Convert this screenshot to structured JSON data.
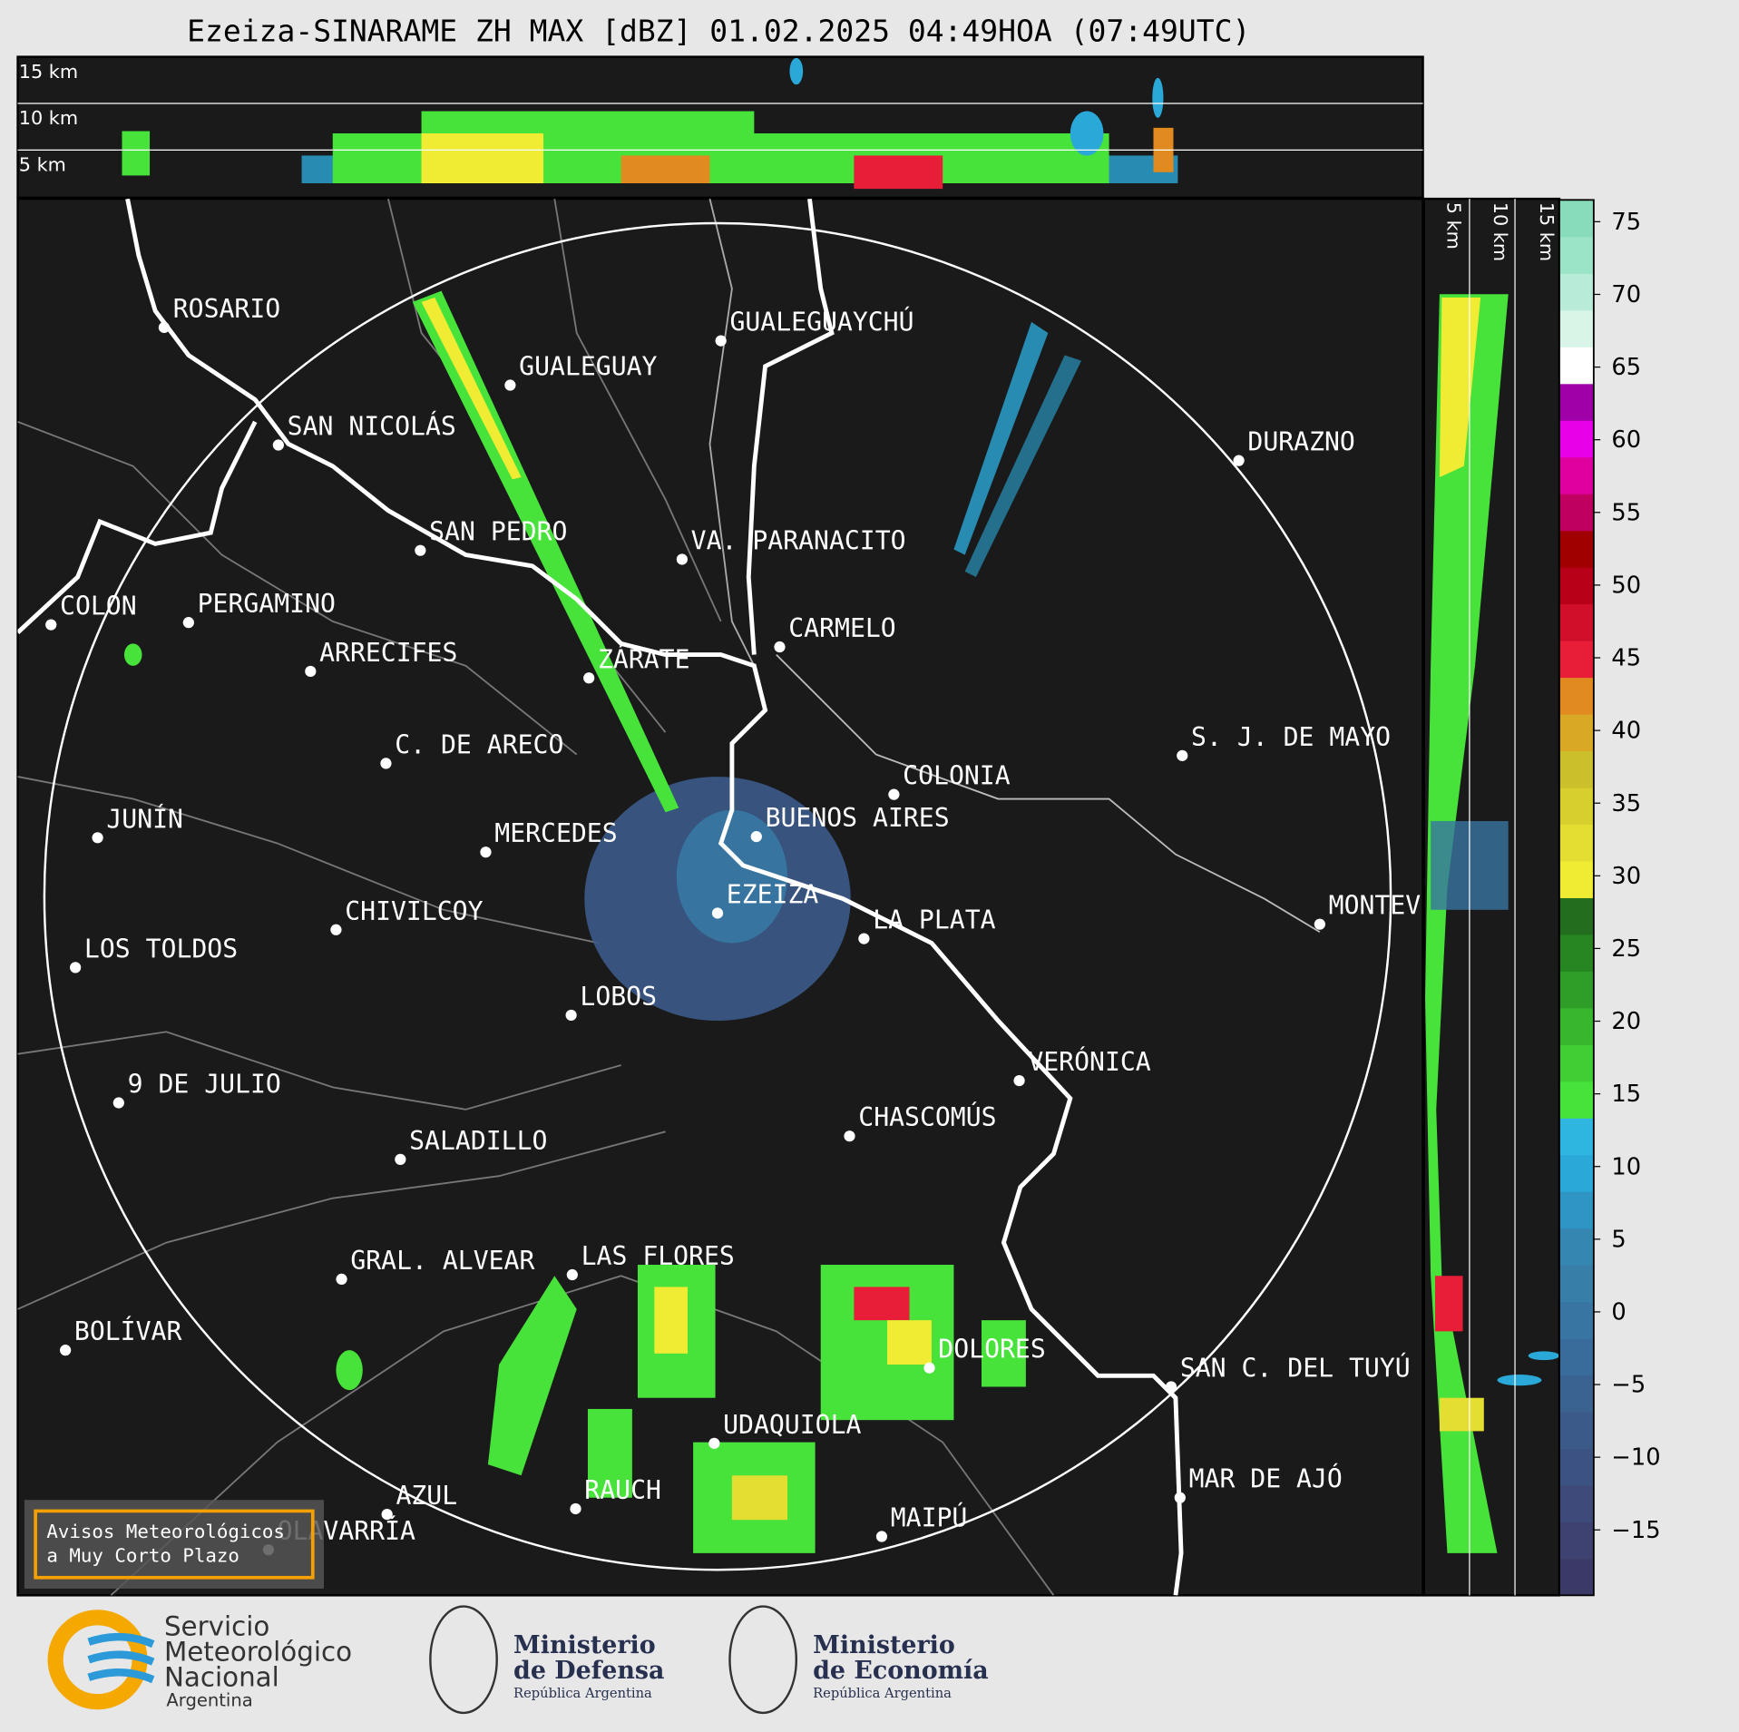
{
  "title": "Ezeiza-SINARAME ZH MAX [dBZ] 01.02.2025 04:49HOA (07:49UTC)",
  "profile_top": {
    "height_labels": [
      "15 km",
      "10 km",
      "5 km"
    ]
  },
  "profile_right": {
    "height_labels": [
      "5 km",
      "10 km",
      "15 km"
    ]
  },
  "cities": [
    "ROSARIO",
    "GUALEGUAYCHÚ",
    "GUALEGUAY",
    "SAN NICOLÁS",
    "DURAZNO",
    "SAN PEDRO",
    "VA. PARANACITO",
    "COLON",
    "PERGAMINO",
    "CARMELO",
    "ARRECIFES",
    "ZÁRATE",
    "S. J. DE MAYO",
    "C. DE ARECO",
    "COLONIA",
    "BUENOS AIRES",
    "JUNÍN",
    "MERCEDES",
    "EZEIZA",
    "MONTEVIDEO",
    "LA PLATA",
    "CHIVILCOY",
    "LOS TOLDOS",
    "LOBOS",
    "VERÓNICA",
    "9 DE JULIO",
    "CHASCOMÚS",
    "SALADILLO",
    "GRAL. ALVEAR",
    "LAS FLORES",
    "BOLÍVAR",
    "DOLORES",
    "SAN C. DEL TUYÚ",
    "UDAQUIOLA",
    "MAR DE AJÓ",
    "AZUL",
    "RAUCH",
    "OLAVARRÍA",
    "MAIPÚ"
  ],
  "notice": [
    "Avisos Meteorológicos",
    "a Muy Corto Plazo"
  ],
  "colorbar": {
    "lim": [
      -19.5,
      76.5
    ],
    "ticks": [
      {
        "value": -15,
        "label": "−15"
      },
      {
        "value": -10,
        "label": "−10"
      },
      {
        "value": -5,
        "label": "−5"
      },
      0,
      5,
      10,
      15,
      20,
      25,
      30,
      35,
      40,
      45,
      50,
      55,
      60,
      65,
      70,
      75
    ],
    "colors": [
      "#3b3a66",
      "#3d4270",
      "#3d4a7a",
      "#3c5282",
      "#3b5a8a",
      "#3a6392",
      "#396c9a",
      "#3875a2",
      "#377ea9",
      "#3587b1",
      "#2e95c4",
      "#2aa8d8",
      "#2fb6e0",
      "#47e23a",
      "#3fce34",
      "#37b62e",
      "#2f9e28",
      "#278622",
      "#236d1e",
      "#efec33",
      "#e3de31",
      "#d7cf2e",
      "#cbbf2b",
      "#d9a825",
      "#e08a20",
      "#e81e38",
      "#d0102a",
      "#b80018",
      "#a00000",
      "#c00060",
      "#e000a0",
      "#e800e8",
      "#a000a8",
      "#ffffff",
      "#d8f5e8",
      "#b8ecd8",
      "#9ce4c8",
      "#88dcbc"
    ]
  },
  "logos": {
    "smn": [
      "Servicio",
      "Meteorológico",
      "Nacional",
      "Argentina"
    ],
    "defensa": [
      "Ministerio",
      "de Defensa",
      "República Argentina"
    ],
    "economia": [
      "Ministerio",
      "de Economía",
      "República Argentina"
    ]
  }
}
